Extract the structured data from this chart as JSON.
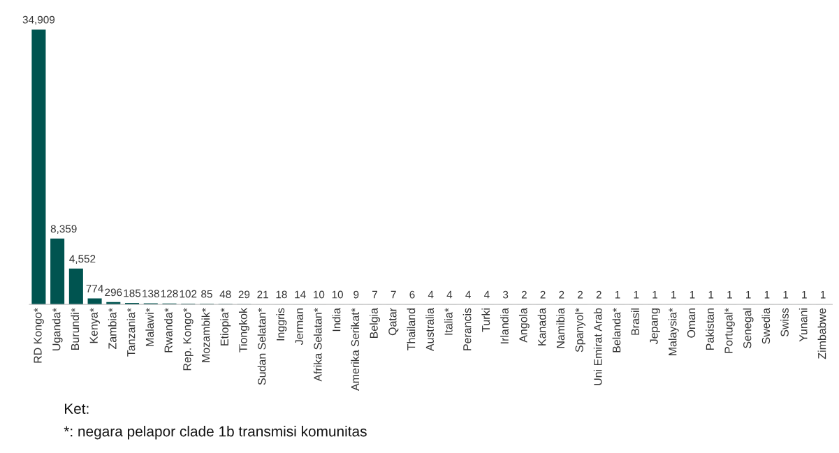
{
  "chart_data": {
    "type": "bar",
    "categories": [
      "RD Kongo*",
      "Uganda*",
      "Burundi*",
      "Kenya*",
      "Zambia*",
      "Tanzania*",
      "Malawi*",
      "Rwanda*",
      "Rep. Kongo*",
      "Mozambik*",
      "Etiopia*",
      "Tiongkok",
      "Sudan Selatan*",
      "Inggris",
      "Jerman",
      "Afrika Selatan*",
      "India",
      "Amerika Serikat*",
      "Belgia",
      "Qatar",
      "Thailand",
      "Australia",
      "Italia*",
      "Perancis",
      "Turki",
      "Irlandia",
      "Angola",
      "Kanada",
      "Namibia",
      "Spanyol*",
      "Uni Emirat Arab",
      "Belanda*",
      "Brasil",
      "Jepang",
      "Malaysia*",
      "Oman",
      "Pakistan",
      "Portugal*",
      "Senegal",
      "Swedia",
      "Swiss",
      "Yunani",
      "Zimbabwe"
    ],
    "values": [
      34909,
      8359,
      4552,
      774,
      296,
      185,
      138,
      128,
      102,
      85,
      48,
      29,
      21,
      18,
      14,
      10,
      10,
      9,
      7,
      7,
      6,
      4,
      4,
      4,
      4,
      3,
      2,
      2,
      2,
      2,
      2,
      1,
      1,
      1,
      1,
      1,
      1,
      1,
      1,
      1,
      1,
      1,
      1
    ],
    "value_labels": [
      "34,909",
      "8,359",
      "4,552",
      "774",
      "296",
      "185",
      "138",
      "128",
      "102",
      "85",
      "48",
      "29",
      "21",
      "18",
      "14",
      "10",
      "10",
      "9",
      "7",
      "7",
      "6",
      "4",
      "4",
      "4",
      "4",
      "3",
      "2",
      "2",
      "2",
      "2",
      "2",
      "1",
      "1",
      "1",
      "1",
      "1",
      "1",
      "1",
      "1",
      "1",
      "1",
      "1",
      "1"
    ],
    "color": "#005450",
    "tick_labels": "x",
    "grid": false,
    "legend": false,
    "annotations": [
      "Ket:",
      "*: negara pelapor clade 1b transmisi komunitas"
    ]
  }
}
